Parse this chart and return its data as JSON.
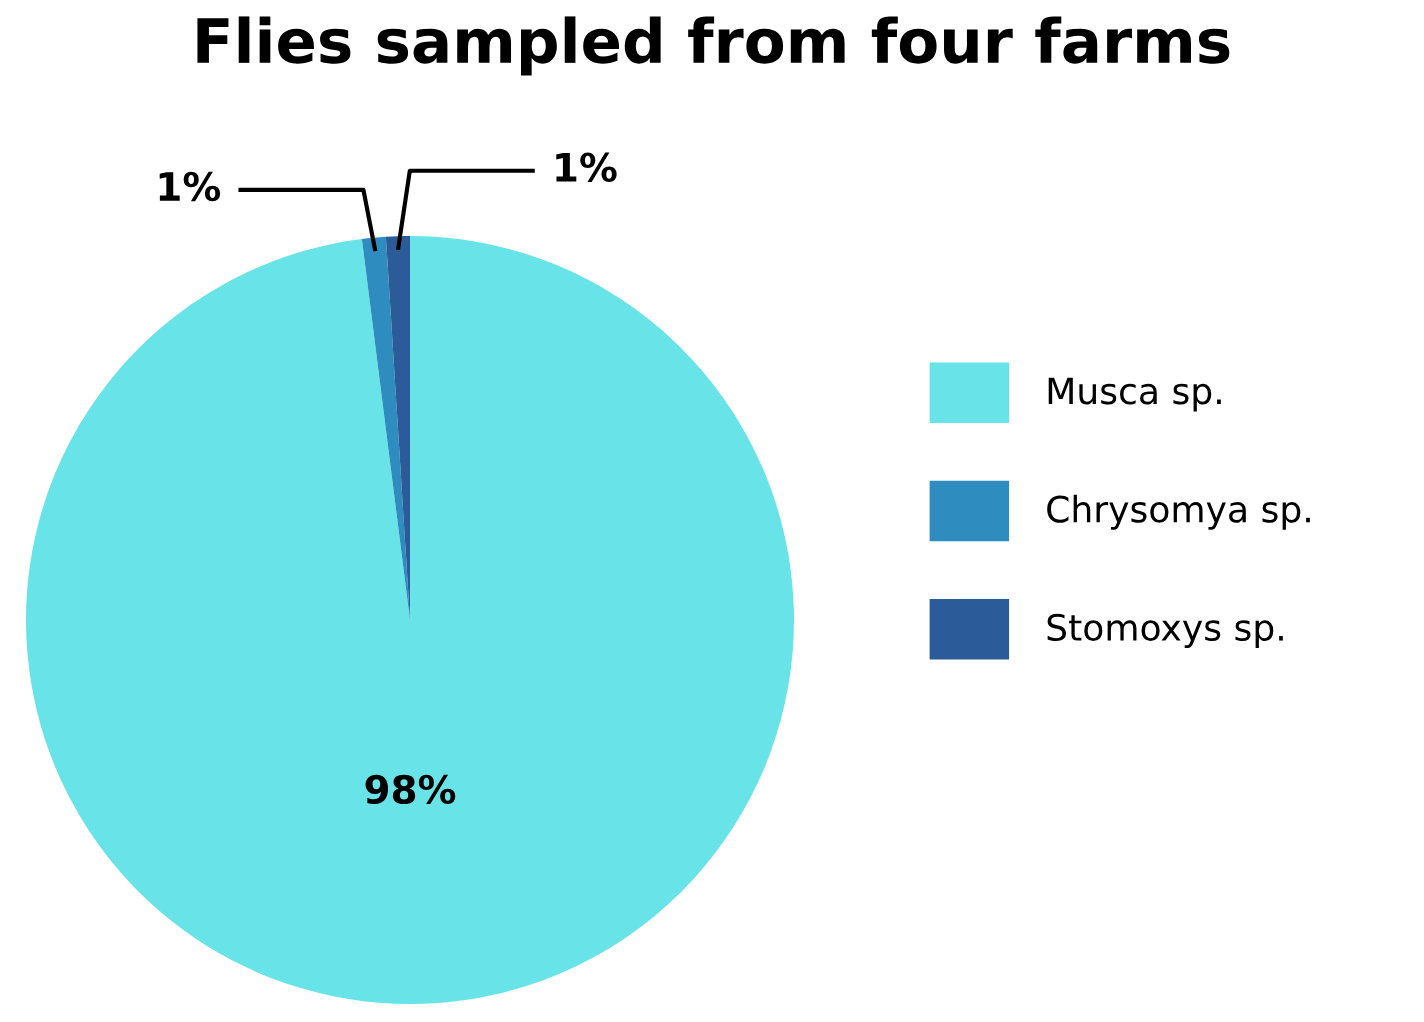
{
  "chart_data": {
    "type": "pie",
    "title": "Flies sampled from four farms",
    "categories": [
      "Musca sp.",
      "Chrysomya sp.",
      "Stomoxys sp."
    ],
    "values": [
      98,
      1,
      1
    ],
    "colors": [
      "#68e3e7",
      "#2e8dbe",
      "#2c5b9a"
    ],
    "value_labels": [
      "98%",
      "1%",
      "1%"
    ],
    "legend": "right"
  }
}
